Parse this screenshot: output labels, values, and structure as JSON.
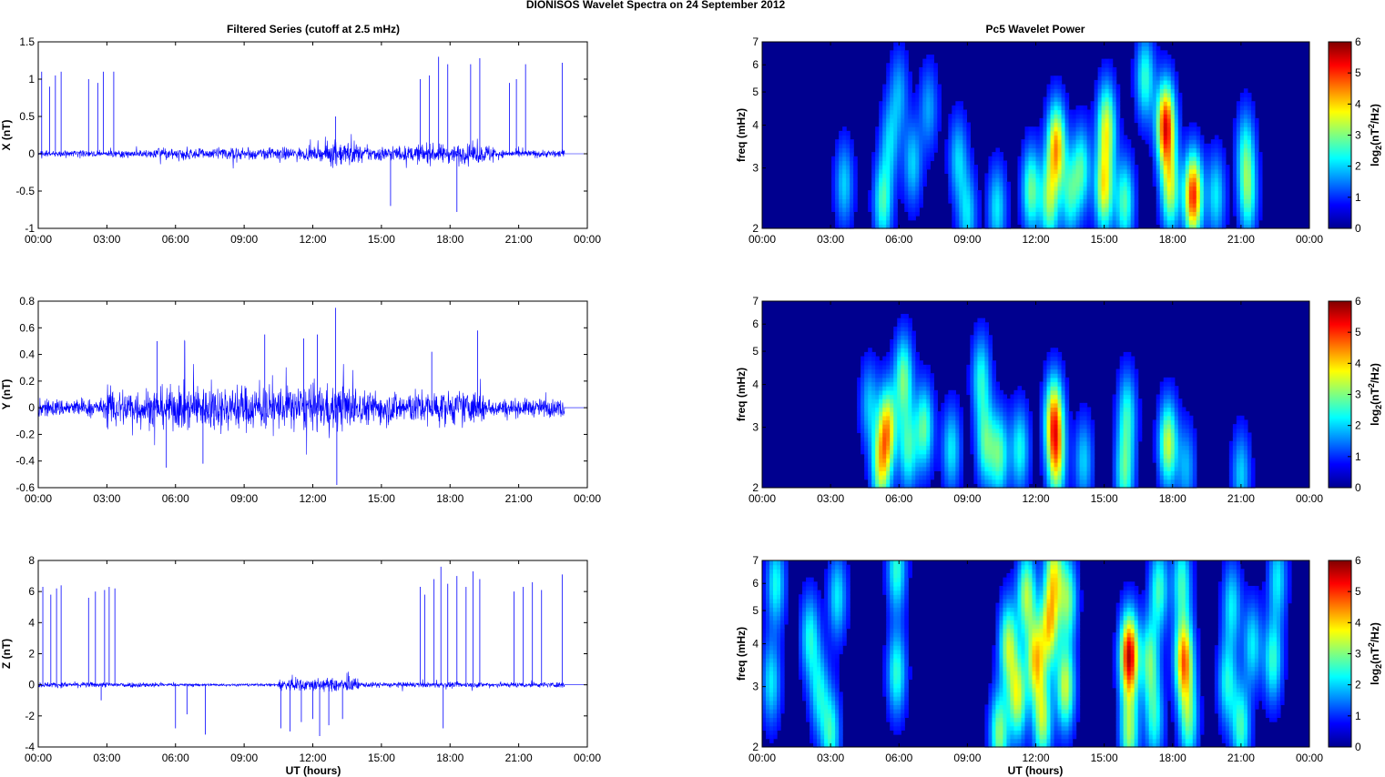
{
  "figure": {
    "suptitle": "DIONISOS Wavelet Spectra on 24 September 2012",
    "left_title": "Filtered Series (cutoff at 2.5 mHz)",
    "right_title": "Pc5 Wavelet Power",
    "xlabel": "UT (hours)",
    "freq_ylabel": "freq (mHz)",
    "colorbar_label_main": "log",
    "colorbar_label_sub": "2",
    "colorbar_label_paren": "(nT",
    "colorbar_label_sup": "2",
    "colorbar_label_end": "/Hz)"
  },
  "colors": {
    "series_line": "#0000ff",
    "spectrogram_background": "#00008f",
    "axis": "#000000"
  },
  "chart_data": [
    {
      "type": "line",
      "panel": "X",
      "ylabel": "X (nT)",
      "ylim": [
        -1,
        1.5
      ],
      "yticks": [
        "1.5",
        "1",
        "0.5",
        "0",
        "-0.5",
        "-1"
      ],
      "xticks": [
        "00:00",
        "03:00",
        "06:00",
        "09:00",
        "12:00",
        "15:00",
        "18:00",
        "21:00",
        "00:00"
      ],
      "xlim_hours": [
        0,
        24
      ],
      "data_end_hour": 23.0,
      "noise_segments": [
        {
          "from": 0,
          "to": 5,
          "amp": 0.05
        },
        {
          "from": 5,
          "to": 12.5,
          "amp": 0.1
        },
        {
          "from": 12.5,
          "to": 14,
          "amp": 0.2
        },
        {
          "from": 14,
          "to": 16.5,
          "amp": 0.12
        },
        {
          "from": 16.5,
          "to": 20,
          "amp": 0.15
        },
        {
          "from": 20,
          "to": 23,
          "amp": 0.06
        }
      ],
      "spikes": [
        {
          "t": 0.15,
          "v": 1.1
        },
        {
          "t": 0.5,
          "v": 0.9
        },
        {
          "t": 0.75,
          "v": 1.05
        },
        {
          "t": 1.0,
          "v": 1.1
        },
        {
          "t": 2.2,
          "v": 1.0
        },
        {
          "t": 2.6,
          "v": 0.95
        },
        {
          "t": 2.85,
          "v": 1.1
        },
        {
          "t": 3.3,
          "v": 1.1
        },
        {
          "t": 13.0,
          "v": 0.5
        },
        {
          "t": 15.4,
          "v": -0.7
        },
        {
          "t": 16.7,
          "v": 1.0
        },
        {
          "t": 17.1,
          "v": 1.05
        },
        {
          "t": 17.5,
          "v": 1.3
        },
        {
          "t": 17.9,
          "v": 1.2
        },
        {
          "t": 18.3,
          "v": -0.78
        },
        {
          "t": 18.9,
          "v": 1.2
        },
        {
          "t": 19.3,
          "v": 1.28
        },
        {
          "t": 20.6,
          "v": 0.95
        },
        {
          "t": 20.9,
          "v": 1.0
        },
        {
          "t": 21.3,
          "v": 1.2
        },
        {
          "t": 22.9,
          "v": 1.22
        }
      ]
    },
    {
      "type": "line",
      "panel": "Y",
      "ylabel": "Y (nT)",
      "ylim": [
        -0.6,
        0.8
      ],
      "yticks": [
        "0.8",
        "0.6",
        "0.4",
        "0.2",
        "0",
        "-0.2",
        "-0.4",
        "-0.6"
      ],
      "xticks": [
        "00:00",
        "03:00",
        "06:00",
        "09:00",
        "12:00",
        "15:00",
        "18:00",
        "21:00",
        "00:00"
      ],
      "xlim_hours": [
        0,
        24
      ],
      "data_end_hour": 23.0,
      "noise_segments": [
        {
          "from": 0,
          "to": 3,
          "amp": 0.08
        },
        {
          "from": 3,
          "to": 6,
          "amp": 0.18
        },
        {
          "from": 6,
          "to": 14,
          "amp": 0.2
        },
        {
          "from": 14,
          "to": 19.5,
          "amp": 0.15
        },
        {
          "from": 19.5,
          "to": 23,
          "amp": 0.08
        }
      ],
      "spikes": [
        {
          "t": 5.2,
          "v": 0.5
        },
        {
          "t": 5.6,
          "v": -0.45
        },
        {
          "t": 6.4,
          "v": 0.5
        },
        {
          "t": 7.2,
          "v": -0.42
        },
        {
          "t": 9.9,
          "v": 0.55
        },
        {
          "t": 11.6,
          "v": 0.52
        },
        {
          "t": 12.2,
          "v": 0.55
        },
        {
          "t": 13.0,
          "v": 0.75
        },
        {
          "t": 13.05,
          "v": -0.58
        },
        {
          "t": 17.2,
          "v": 0.42
        },
        {
          "t": 19.2,
          "v": 0.58
        }
      ]
    },
    {
      "type": "line",
      "panel": "Z",
      "ylabel": "Z (nT)",
      "ylim": [
        -4,
        8
      ],
      "yticks": [
        "8",
        "6",
        "4",
        "2",
        "0",
        "-2",
        "-4"
      ],
      "xticks": [
        "00:00",
        "03:00",
        "06:00",
        "09:00",
        "12:00",
        "15:00",
        "18:00",
        "21:00",
        "00:00"
      ],
      "xlabel": "UT (hours)",
      "xlim_hours": [
        0,
        24
      ],
      "data_end_hour": 23.0,
      "noise_segments": [
        {
          "from": 0,
          "to": 5.5,
          "amp": 0.2
        },
        {
          "from": 5.5,
          "to": 10.5,
          "amp": 0.1
        },
        {
          "from": 10.5,
          "to": 14,
          "amp": 0.5
        },
        {
          "from": 14,
          "to": 23,
          "amp": 0.2
        }
      ],
      "spikes": [
        {
          "t": 0.2,
          "v": 6.3
        },
        {
          "t": 0.55,
          "v": 5.8
        },
        {
          "t": 0.8,
          "v": 6.2
        },
        {
          "t": 1.0,
          "v": 6.4
        },
        {
          "t": 2.2,
          "v": 5.6
        },
        {
          "t": 2.5,
          "v": 6.0
        },
        {
          "t": 2.75,
          "v": -1.0
        },
        {
          "t": 2.9,
          "v": 6.1
        },
        {
          "t": 3.1,
          "v": 6.3
        },
        {
          "t": 3.35,
          "v": 6.2
        },
        {
          "t": 6.0,
          "v": -2.8
        },
        {
          "t": 6.5,
          "v": -1.9
        },
        {
          "t": 7.3,
          "v": -3.2
        },
        {
          "t": 10.6,
          "v": -2.8
        },
        {
          "t": 11.0,
          "v": -3.0
        },
        {
          "t": 11.5,
          "v": -2.4
        },
        {
          "t": 12.0,
          "v": -2.2
        },
        {
          "t": 12.3,
          "v": -3.3
        },
        {
          "t": 12.7,
          "v": -2.6
        },
        {
          "t": 13.3,
          "v": -2.2
        },
        {
          "t": 16.7,
          "v": 6.3
        },
        {
          "t": 16.9,
          "v": 5.8
        },
        {
          "t": 17.3,
          "v": 6.8
        },
        {
          "t": 17.6,
          "v": 7.6
        },
        {
          "t": 17.7,
          "v": -2.8
        },
        {
          "t": 17.9,
          "v": 6.5
        },
        {
          "t": 18.3,
          "v": 7.0
        },
        {
          "t": 18.7,
          "v": 6.3
        },
        {
          "t": 19.0,
          "v": 7.3
        },
        {
          "t": 19.3,
          "v": 6.8
        },
        {
          "t": 20.8,
          "v": 6.0
        },
        {
          "t": 21.2,
          "v": 6.3
        },
        {
          "t": 21.6,
          "v": 6.6
        },
        {
          "t": 22.0,
          "v": 6.1
        },
        {
          "t": 22.9,
          "v": 7.1
        }
      ]
    },
    {
      "type": "heatmap",
      "panel": "X",
      "ylabel": "freq (mHz)",
      "ylim_mhz": [
        2,
        7
      ],
      "yscale": "log",
      "yticks": [
        "7",
        "6",
        "5",
        "4",
        "3",
        "2"
      ],
      "xticks": [
        "00:00",
        "03:00",
        "06:00",
        "09:00",
        "12:00",
        "15:00",
        "18:00",
        "21:00",
        "00:00"
      ],
      "xlim_hours": [
        0,
        24
      ],
      "clim": [
        0,
        6
      ],
      "cbar_ticks": [
        "6",
        "5",
        "4",
        "3",
        "2",
        "1",
        "0"
      ],
      "blobs": [
        {
          "t": 3.6,
          "f": 2.7,
          "p": 1.6
        },
        {
          "t": 5.3,
          "f": 2.4,
          "p": 2.3
        },
        {
          "t": 5.6,
          "f": 3.6,
          "p": 1.5
        },
        {
          "t": 6.0,
          "f": 5.0,
          "p": 1.3
        },
        {
          "t": 6.6,
          "f": 3.1,
          "p": 1.6
        },
        {
          "t": 7.3,
          "f": 4.5,
          "p": 1.3
        },
        {
          "t": 8.6,
          "f": 3.2,
          "p": 1.6
        },
        {
          "t": 9.0,
          "f": 2.2,
          "p": 1.7
        },
        {
          "t": 10.3,
          "f": 2.3,
          "p": 1.8
        },
        {
          "t": 11.8,
          "f": 2.6,
          "p": 2.6
        },
        {
          "t": 12.6,
          "f": 2.4,
          "p": 2.7
        },
        {
          "t": 12.9,
          "f": 3.5,
          "p": 4.0
        },
        {
          "t": 13.5,
          "f": 2.5,
          "p": 2.0
        },
        {
          "t": 14.0,
          "f": 3.0,
          "p": 2.2
        },
        {
          "t": 15.0,
          "f": 2.6,
          "p": 3.4
        },
        {
          "t": 15.1,
          "f": 4.0,
          "p": 3.2
        },
        {
          "t": 15.9,
          "f": 2.4,
          "p": 2.4
        },
        {
          "t": 16.8,
          "f": 5.5,
          "p": 2.2
        },
        {
          "t": 17.7,
          "f": 4.0,
          "p": 5.2
        },
        {
          "t": 17.9,
          "f": 2.6,
          "p": 3.0
        },
        {
          "t": 18.9,
          "f": 2.5,
          "p": 5.0
        },
        {
          "t": 19.9,
          "f": 2.5,
          "p": 1.8
        },
        {
          "t": 21.2,
          "f": 3.4,
          "p": 1.8
        },
        {
          "t": 21.3,
          "f": 2.5,
          "p": 2.2
        }
      ]
    },
    {
      "type": "heatmap",
      "panel": "Y",
      "ylabel": "freq (mHz)",
      "ylim_mhz": [
        2,
        7
      ],
      "yscale": "log",
      "yticks": [
        "7",
        "6",
        "5",
        "4",
        "3",
        "2"
      ],
      "xticks": [
        "00:00",
        "03:00",
        "06:00",
        "09:00",
        "12:00",
        "15:00",
        "18:00",
        "21:00",
        "00:00"
      ],
      "xlim_hours": [
        0,
        24
      ],
      "clim": [
        0,
        6
      ],
      "cbar_ticks": [
        "6",
        "5",
        "4",
        "3",
        "2",
        "1",
        "0"
      ],
      "blobs": [
        {
          "t": 4.7,
          "f": 3.5,
          "p": 1.5
        },
        {
          "t": 5.2,
          "f": 2.3,
          "p": 3.0
        },
        {
          "t": 5.5,
          "f": 3.0,
          "p": 3.6
        },
        {
          "t": 6.2,
          "f": 4.2,
          "p": 2.6
        },
        {
          "t": 6.4,
          "f": 2.6,
          "p": 2.2
        },
        {
          "t": 7.1,
          "f": 3.0,
          "p": 2.5
        },
        {
          "t": 8.3,
          "f": 2.6,
          "p": 1.8
        },
        {
          "t": 9.6,
          "f": 4.2,
          "p": 2.0
        },
        {
          "t": 9.8,
          "f": 2.7,
          "p": 2.3
        },
        {
          "t": 10.4,
          "f": 2.5,
          "p": 2.4
        },
        {
          "t": 11.3,
          "f": 2.6,
          "p": 2.0
        },
        {
          "t": 12.8,
          "f": 3.2,
          "p": 4.0
        },
        {
          "t": 12.9,
          "f": 2.4,
          "p": 3.0
        },
        {
          "t": 14.1,
          "f": 2.4,
          "p": 1.6
        },
        {
          "t": 15.9,
          "f": 2.2,
          "p": 2.3
        },
        {
          "t": 16.0,
          "f": 3.3,
          "p": 2.0
        },
        {
          "t": 17.8,
          "f": 2.7,
          "p": 3.2
        },
        {
          "t": 18.6,
          "f": 2.3,
          "p": 1.4
        },
        {
          "t": 21.0,
          "f": 2.2,
          "p": 1.6
        }
      ]
    },
    {
      "type": "heatmap",
      "panel": "Z",
      "ylabel": "freq (mHz)",
      "xlabel": "UT (hours)",
      "ylim_mhz": [
        2,
        7
      ],
      "yscale": "log",
      "yticks": [
        "7",
        "6",
        "5",
        "4",
        "3",
        "2"
      ],
      "xticks": [
        "00:00",
        "03:00",
        "06:00",
        "09:00",
        "12:00",
        "15:00",
        "18:00",
        "21:00",
        "00:00"
      ],
      "xlim_hours": [
        0,
        24
      ],
      "clim": [
        0,
        6
      ],
      "cbar_ticks": [
        "6",
        "5",
        "4",
        "3",
        "2",
        "1",
        "0"
      ],
      "blobs": [
        {
          "t": 0.4,
          "f": 3.1,
          "p": 1.8
        },
        {
          "t": 0.6,
          "f": 6.0,
          "p": 2.0
        },
        {
          "t": 2.1,
          "f": 4.2,
          "p": 2.0
        },
        {
          "t": 2.5,
          "f": 2.9,
          "p": 1.8
        },
        {
          "t": 3.0,
          "f": 2.2,
          "p": 2.2
        },
        {
          "t": 3.3,
          "f": 5.5,
          "p": 1.8
        },
        {
          "t": 5.9,
          "f": 3.3,
          "p": 2.2
        },
        {
          "t": 5.9,
          "f": 6.6,
          "p": 2.2
        },
        {
          "t": 10.4,
          "f": 2.2,
          "p": 2.8
        },
        {
          "t": 10.8,
          "f": 4.0,
          "p": 3.0
        },
        {
          "t": 11.2,
          "f": 2.8,
          "p": 3.2
        },
        {
          "t": 11.6,
          "f": 5.6,
          "p": 3.0
        },
        {
          "t": 12.0,
          "f": 3.6,
          "p": 3.6
        },
        {
          "t": 12.3,
          "f": 2.4,
          "p": 3.0
        },
        {
          "t": 12.6,
          "f": 4.5,
          "p": 3.4
        },
        {
          "t": 12.8,
          "f": 6.5,
          "p": 3.0
        },
        {
          "t": 13.3,
          "f": 3.0,
          "p": 3.2
        },
        {
          "t": 13.4,
          "f": 5.4,
          "p": 2.6
        },
        {
          "t": 16.1,
          "f": 3.7,
          "p": 5.6
        },
        {
          "t": 16.1,
          "f": 2.2,
          "p": 2.8
        },
        {
          "t": 17.0,
          "f": 3.6,
          "p": 2.5
        },
        {
          "t": 17.2,
          "f": 2.4,
          "p": 2.0
        },
        {
          "t": 17.4,
          "f": 5.8,
          "p": 2.3
        },
        {
          "t": 18.5,
          "f": 3.6,
          "p": 4.4
        },
        {
          "t": 18.7,
          "f": 2.4,
          "p": 2.4
        },
        {
          "t": 18.4,
          "f": 6.1,
          "p": 2.2
        },
        {
          "t": 20.4,
          "f": 3.1,
          "p": 2.0
        },
        {
          "t": 20.6,
          "f": 5.2,
          "p": 1.8
        },
        {
          "t": 21.0,
          "f": 2.3,
          "p": 2.3
        },
        {
          "t": 21.5,
          "f": 4.0,
          "p": 1.8
        },
        {
          "t": 22.4,
          "f": 3.6,
          "p": 2.2
        },
        {
          "t": 22.6,
          "f": 6.2,
          "p": 1.8
        }
      ]
    }
  ]
}
